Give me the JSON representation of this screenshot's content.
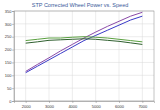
{
  "chart_data": {
    "type": "line",
    "title": "STP Corrected Wheel Power vs. Speed",
    "x": [
      2000,
      2500,
      3000,
      3500,
      4000,
      4500,
      5000,
      5500,
      6000,
      6500,
      7000
    ],
    "series": [
      {
        "color": "#3a3ac8",
        "values": [
          110,
          135,
          160,
          185,
          210,
          235,
          255,
          275,
          295,
          315,
          330
        ]
      },
      {
        "color": "#8a4aa8",
        "values": [
          115,
          142,
          168,
          195,
          220,
          245,
          268,
          290,
          310,
          330,
          345
        ]
      },
      {
        "color": "#5aa040",
        "values": [
          235,
          240,
          245,
          245,
          248,
          250,
          248,
          245,
          240,
          235,
          230
        ]
      },
      {
        "color": "#2f5f2f",
        "values": [
          225,
          230,
          236,
          238,
          240,
          242,
          240,
          236,
          232,
          226,
          220
        ]
      }
    ],
    "xlim": [
      1500,
      7500
    ],
    "xticks": [
      2000,
      3000,
      4000,
      5000,
      6000,
      7000
    ],
    "ylim": [
      0,
      350
    ],
    "yticks": [
      0,
      50,
      100,
      150,
      200,
      250,
      300,
      350
    ],
    "grid": true
  }
}
